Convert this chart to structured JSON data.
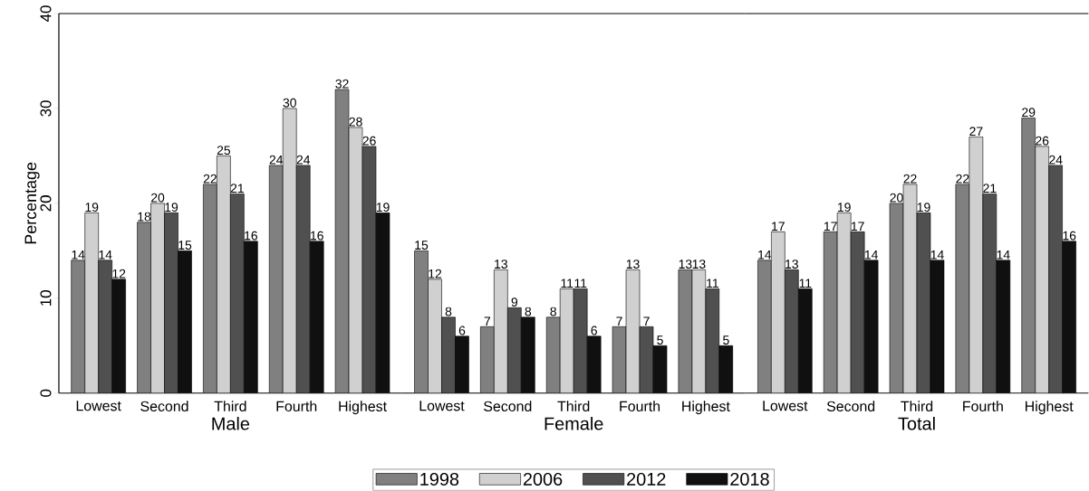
{
  "chart_data": [
    {
      "type": "bar",
      "xlabel": "Male",
      "ylabel": "Percentage",
      "categories": [
        "Lowest",
        "Second",
        "Third",
        "Fourth",
        "Highest"
      ],
      "ylim": [
        0,
        40
      ],
      "yticks": [
        0,
        10,
        20,
        30,
        40
      ],
      "data_labels": true,
      "grid": false,
      "series": [
        {
          "color": "#808080",
          "values": [
            14,
            18,
            22,
            24,
            32
          ]
        },
        {
          "color": "#d0d0d0",
          "values": [
            19,
            20,
            25,
            30,
            28
          ]
        },
        {
          "color": "#505050",
          "values": [
            14,
            19,
            21,
            24,
            26
          ]
        },
        {
          "color": "#101010",
          "values": [
            12,
            15,
            16,
            16,
            19
          ]
        }
      ]
    },
    {
      "type": "bar",
      "xlabel": "Female",
      "categories": [
        "Lowest",
        "Second",
        "Third",
        "Fourth",
        "Highest"
      ],
      "ylim": [
        0,
        40
      ],
      "yticks": [
        0,
        10,
        20,
        30,
        40
      ],
      "tick_labels": "x",
      "data_labels": true,
      "grid": false,
      "legend": "bottom",
      "series": [
        {
          "name": "1998",
          "color": "#808080",
          "values": [
            15,
            7,
            8,
            7,
            13
          ]
        },
        {
          "name": "2006",
          "color": "#d0d0d0",
          "values": [
            12,
            13,
            11,
            13,
            13
          ]
        },
        {
          "name": "2012",
          "color": "#505050",
          "values": [
            8,
            9,
            11,
            7,
            11
          ]
        },
        {
          "name": "2018",
          "color": "#101010",
          "values": [
            6,
            8,
            6,
            5,
            5
          ]
        }
      ]
    },
    {
      "type": "bar",
      "xlabel": "Total",
      "categories": [
        "Lowest",
        "Second",
        "Third",
        "Fourth",
        "Highest"
      ],
      "ylim": [
        0,
        40
      ],
      "yticks": [
        0,
        10,
        20,
        30,
        40
      ],
      "tick_labels": "x",
      "data_labels": true,
      "grid": false,
      "series": [
        {
          "color": "#808080",
          "values": [
            14,
            17,
            20,
            22,
            29
          ]
        },
        {
          "color": "#d0d0d0",
          "values": [
            17,
            19,
            22,
            27,
            26
          ]
        },
        {
          "color": "#505050",
          "values": [
            13,
            17,
            19,
            21,
            24
          ]
        },
        {
          "color": "#101010",
          "values": [
            11,
            14,
            14,
            14,
            16
          ]
        }
      ]
    }
  ]
}
